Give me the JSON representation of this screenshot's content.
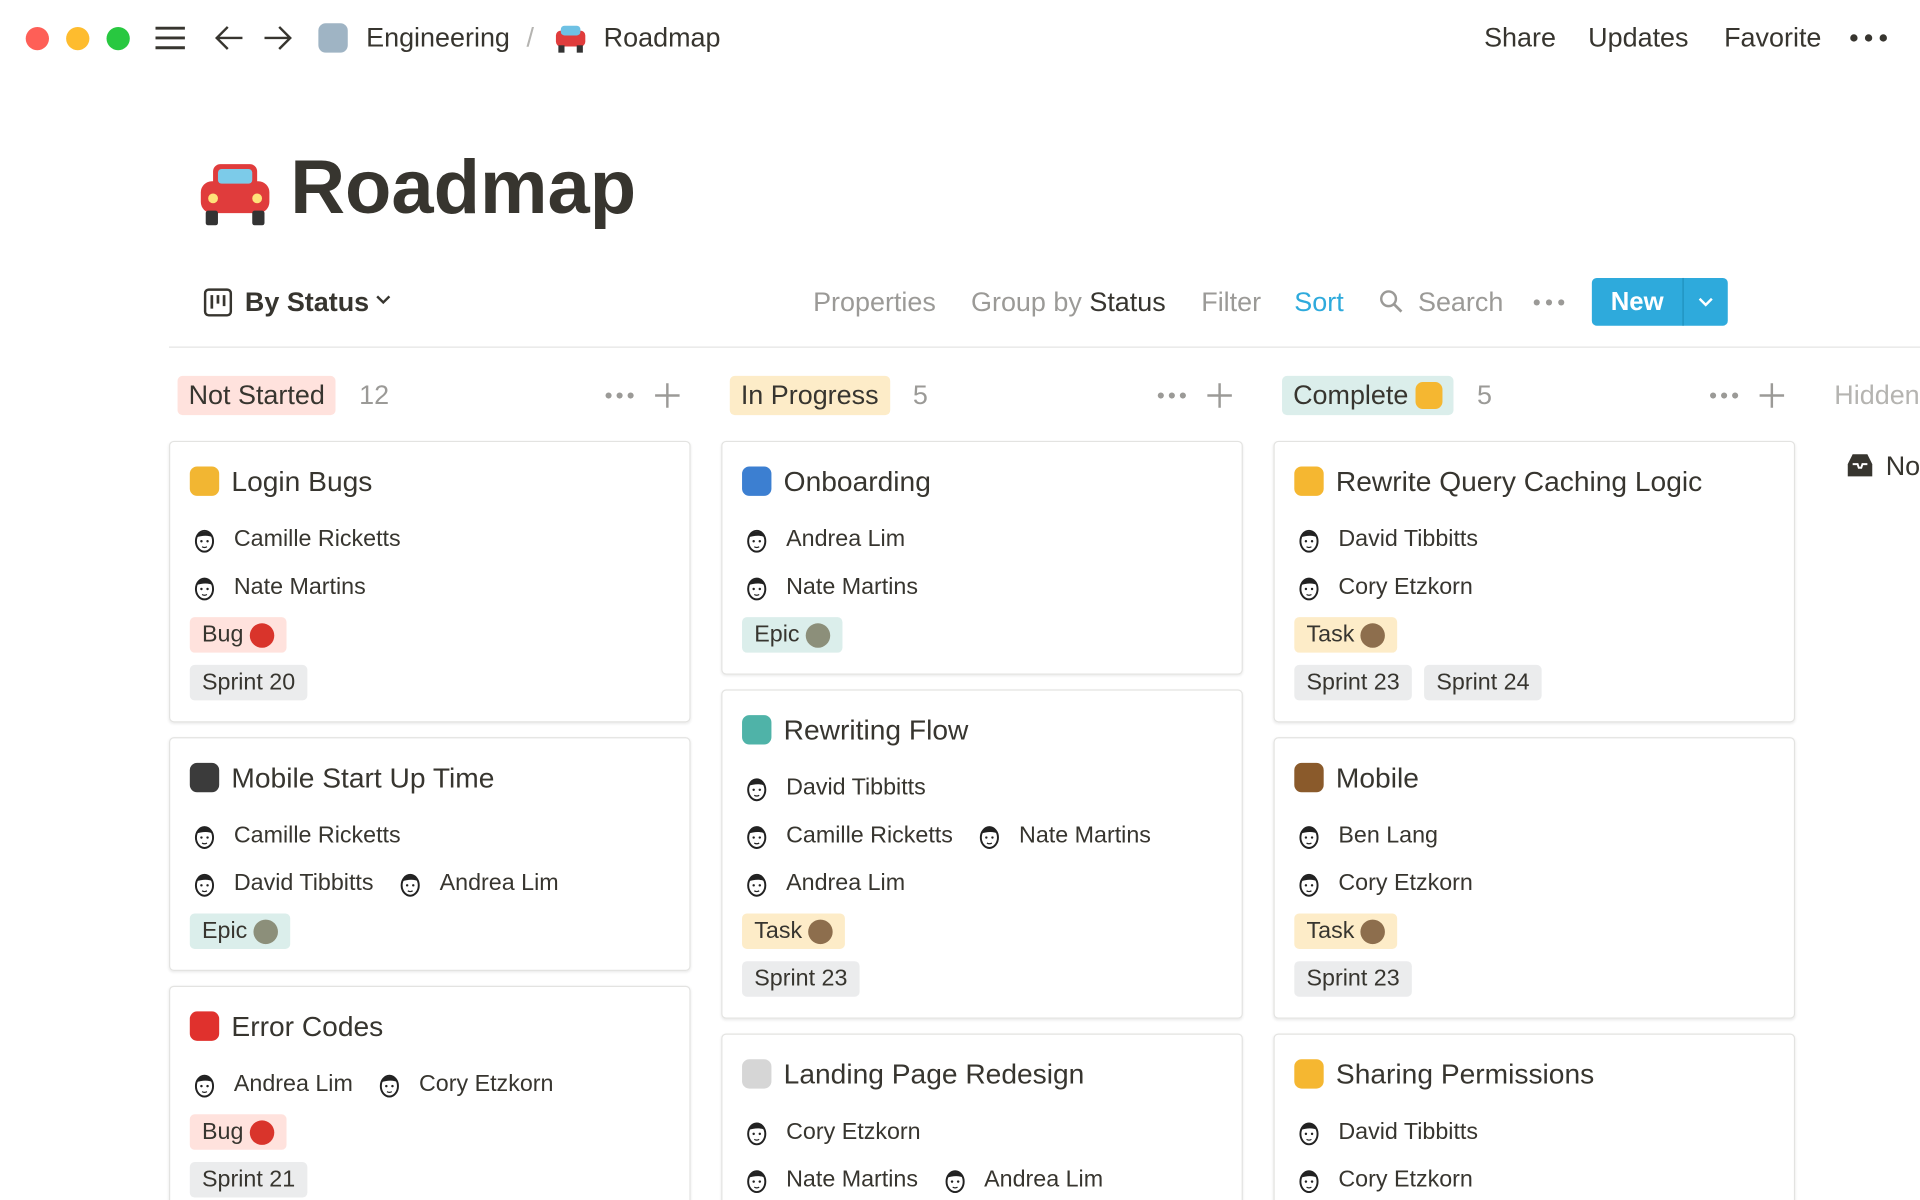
{
  "topbar": {
    "breadcrumb": [
      {
        "icon": "robot-emoji",
        "label": "Engineering"
      },
      {
        "icon": "car-emoji",
        "label": "Roadmap"
      }
    ],
    "separator": "/",
    "actions": [
      "Share",
      "Updates",
      "Favorite"
    ]
  },
  "page": {
    "icon": "car-emoji",
    "title": "Roadmap"
  },
  "toolbar": {
    "view_label": "By Status",
    "properties": "Properties",
    "group_by_prefix": "Group by",
    "group_by_value": "Status",
    "filter": "Filter",
    "sort": "Sort",
    "search": "Search",
    "new_label": "New"
  },
  "colors": {
    "accent": "#2eaadc",
    "sort_active": "#2eaadc"
  },
  "tag_colors": {
    "Not Started": "#ffe2dd",
    "In Progress": "#fdecc8",
    "Complete": "#dbeeeb",
    "Bug": "#ffe2dd",
    "Epic": "#dbeeeb",
    "Task": "#fdecc8",
    "Sprint": "#ebeced"
  },
  "hidden": {
    "label": "Hidden",
    "item": "No"
  },
  "columns": [
    {
      "status": "Not Started",
      "count": "12",
      "cards": [
        {
          "icon": "key-emoji",
          "title": "Login Bugs",
          "people": [
            [
              "Camille Ricketts"
            ],
            [
              "Nate Martins"
            ]
          ],
          "type": "Bug",
          "type_icon": "ladybug-emoji",
          "sprints": [
            "Sprint 20"
          ]
        },
        {
          "icon": "mobile-phone-emoji",
          "title": "Mobile Start Up Time",
          "people": [
            [
              "Camille Ricketts"
            ],
            [
              "David Tibbitts",
              "Andrea Lim"
            ]
          ],
          "type": "Epic",
          "type_icon": "mountain-emoji",
          "sprints": []
        },
        {
          "icon": "exclamation-question-emoji",
          "title": "Error Codes",
          "people": [
            [
              "Andrea Lim",
              "Cory Etzkorn"
            ]
          ],
          "type": "Bug",
          "type_icon": "ladybug-emoji",
          "sprints": [
            "Sprint 21"
          ]
        }
      ]
    },
    {
      "status": "In Progress",
      "count": "5",
      "cards": [
        {
          "icon": "mailbox-emoji",
          "title": "Onboarding",
          "people": [
            [
              "Andrea Lim"
            ],
            [
              "Nate Martins"
            ]
          ],
          "type": "Epic",
          "type_icon": "mountain-emoji",
          "sprints": []
        },
        {
          "icon": "map-emoji",
          "title": "Rewriting Flow",
          "people": [
            [
              "David Tibbitts"
            ],
            [
              "Camille Ricketts",
              "Nate Martins"
            ],
            [
              "Andrea Lim"
            ]
          ],
          "type": "Task",
          "type_icon": "hammer-emoji",
          "sprints": [
            "Sprint 23"
          ]
        },
        {
          "icon": "page-emoji",
          "title": "Landing Page Redesign",
          "people": [
            [
              "Cory Etzkorn"
            ],
            [
              "Nate Martins",
              "Andrea Lim"
            ]
          ],
          "type": "",
          "type_icon": "",
          "sprints": []
        }
      ]
    },
    {
      "status": "Complete",
      "status_icon": "raising-hands-emoji",
      "count": "5",
      "cards": [
        {
          "icon": "writing-hand-emoji",
          "title": "Rewrite Query Caching Logic",
          "people": [
            [
              "David Tibbitts"
            ],
            [
              "Cory Etzkorn"
            ]
          ],
          "type": "Task",
          "type_icon": "hammer-emoji",
          "sprints": [
            "Sprint 23",
            "Sprint 24"
          ]
        },
        {
          "icon": "eye-emoji",
          "title": "Mobile",
          "people": [
            [
              "Ben Lang"
            ],
            [
              "Cory Etzkorn"
            ]
          ],
          "type": "Task",
          "type_icon": "hammer-emoji",
          "sprints": [
            "Sprint 23"
          ]
        },
        {
          "icon": "handshake-emoji",
          "title": "Sharing Permissions",
          "people": [
            [
              "David Tibbitts"
            ],
            [
              "Cory Etzkorn"
            ]
          ],
          "type": "",
          "type_icon": "",
          "sprints": []
        }
      ]
    }
  ]
}
